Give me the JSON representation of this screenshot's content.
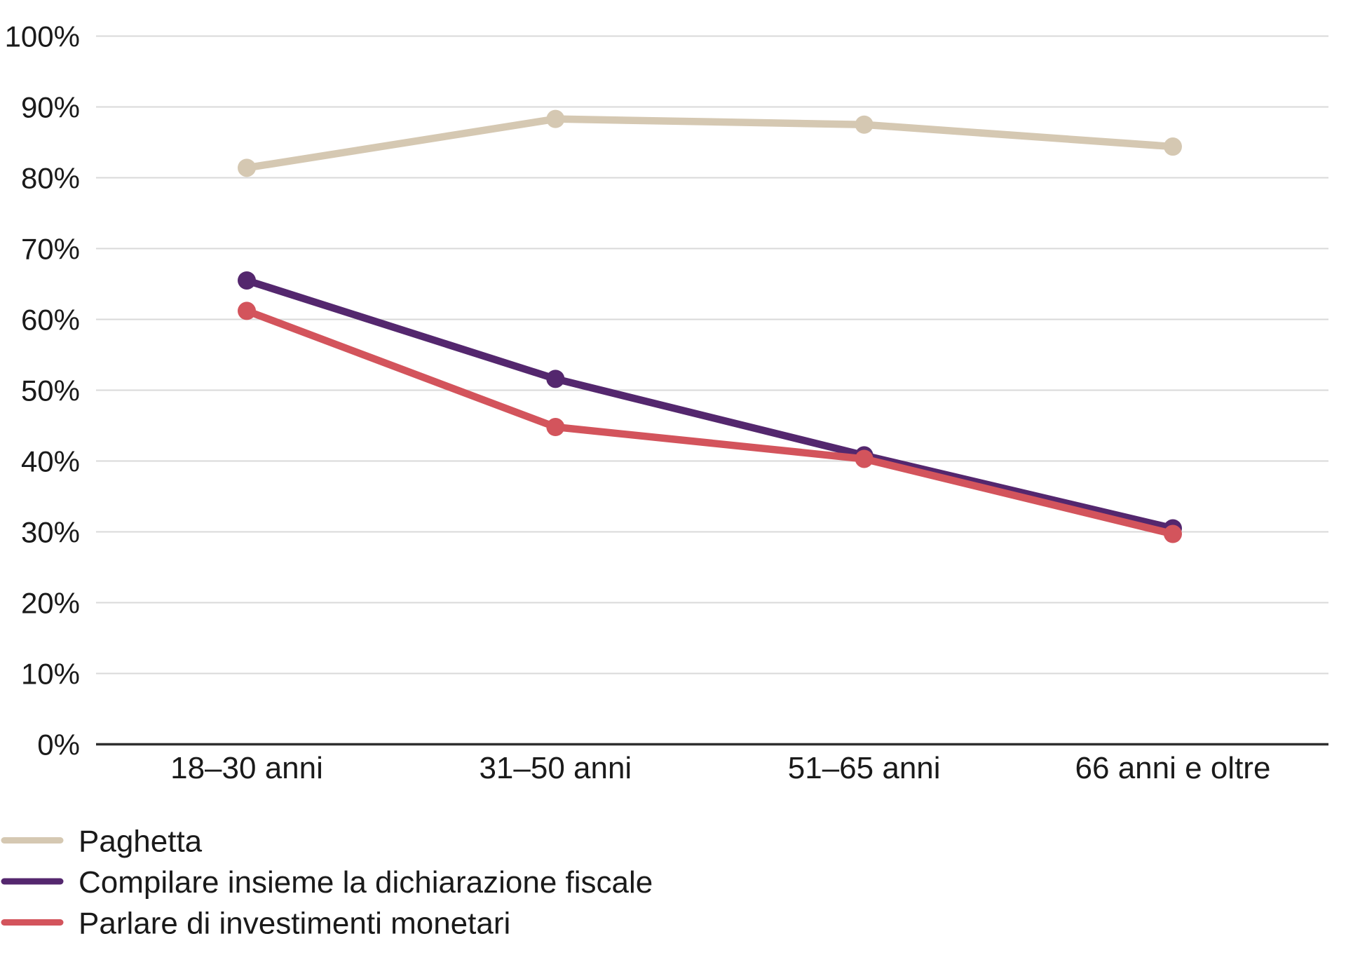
{
  "chart_data": {
    "type": "line",
    "title": "",
    "categories": [
      "18–30 anni",
      "31–50 anni",
      "51–65 anni",
      "66 anni e oltre"
    ],
    "series": [
      {
        "name": "Paghetta",
        "color": "#d5c8b2",
        "values": [
          81.4,
          88.3,
          87.5,
          84.4
        ]
      },
      {
        "name": "Compilare insieme la dichiarazione fiscale",
        "color": "#54276e",
        "values": [
          65.5,
          51.6,
          40.8,
          30.5
        ]
      },
      {
        "name": "Parlare di investimenti monetari",
        "color": "#d3545c",
        "values": [
          61.2,
          44.8,
          40.3,
          29.7
        ]
      }
    ],
    "xlabel": "",
    "ylabel": "",
    "ylim": [
      0,
      100
    ],
    "y_tick_step": 10,
    "y_tick_labels": [
      "0%",
      "10%",
      "20%",
      "30%",
      "40%",
      "50%",
      "60%",
      "70%",
      "80%",
      "90%",
      "100%"
    ],
    "grid": "horizontal",
    "legend_position": "bottom-left",
    "styles": {
      "background": "#ffffff",
      "gridline_color": "#d9d9d9",
      "axis_line_color": "#2f2f2f",
      "text_color": "#1a1a1a"
    }
  }
}
